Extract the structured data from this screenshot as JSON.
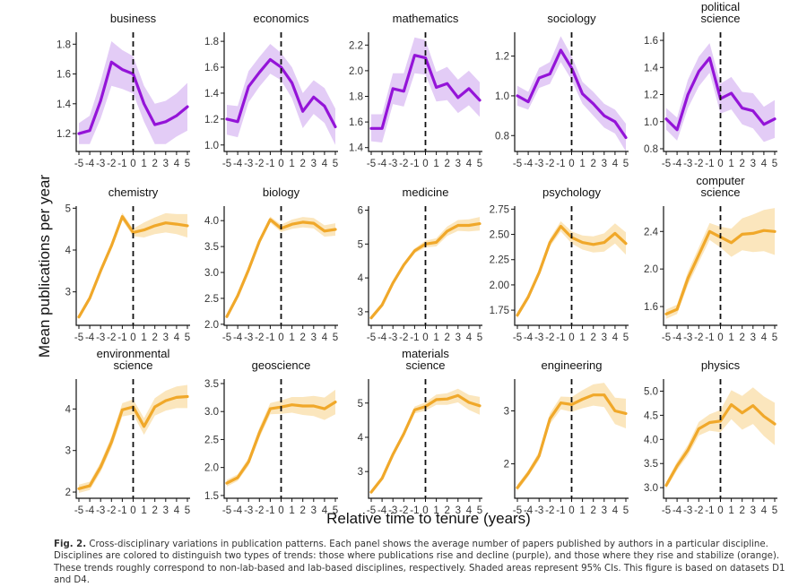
{
  "y_axis_title": "Mean publications per year",
  "x_axis_title": "Relative time to tenure (years)",
  "caption": {
    "label": "Fig. 2.",
    "text": "Cross-disciplinary variations in publication patterns. Each panel shows the average number of papers published by authors in a particular discipline. Disciplines are colored to distinguish two types of trends: those where publications rise and decline (purple), and those where they rise and stabilize (orange). These trends roughly correspond to non-lab-based and lab-based disciplines, respectively. Shaded areas represent 95% CIs. This figure is based on datasets D1 and D4."
  },
  "colors": {
    "rise_decline": "#9414d8",
    "rise_decline_band": "#e3ccf6",
    "rise_stabilize": "#f0a82a",
    "rise_stabilize_band": "#fbe6bd"
  },
  "chart_data": [
    {
      "type": "line",
      "title": [
        "business"
      ],
      "trend": "rise_decline",
      "x": [
        -5,
        -4,
        -3,
        -2,
        -1,
        0,
        1,
        2,
        3,
        4,
        5
      ],
      "xticks": [
        "-5",
        "-4",
        "-3",
        "-2",
        "-1",
        "0",
        "1",
        "2",
        "3",
        "4",
        "5"
      ],
      "ylim": [
        1.08,
        1.88
      ],
      "yticks": [
        1.2,
        1.4,
        1.6,
        1.8
      ],
      "ytick_labels": [
        "1.2",
        "1.4",
        "1.6",
        "1.8"
      ],
      "values": [
        1.2,
        1.22,
        1.42,
        1.68,
        1.63,
        1.6,
        1.4,
        1.26,
        1.28,
        1.32,
        1.38
      ],
      "ci_low": [
        1.13,
        1.13,
        1.3,
        1.52,
        1.5,
        1.47,
        1.28,
        1.13,
        1.13,
        1.18,
        1.22
      ],
      "ci_high": [
        1.27,
        1.32,
        1.55,
        1.82,
        1.76,
        1.72,
        1.52,
        1.4,
        1.42,
        1.47,
        1.54
      ]
    },
    {
      "type": "line",
      "title": [
        "economics"
      ],
      "trend": "rise_decline",
      "x": [
        -5,
        -4,
        -3,
        -2,
        -1,
        0,
        1,
        2,
        3,
        4,
        5
      ],
      "xticks": [
        "-5",
        "-4",
        "-3",
        "-2",
        "-1",
        "0",
        "1",
        "2",
        "3",
        "4",
        "5"
      ],
      "ylim": [
        0.95,
        1.87
      ],
      "yticks": [
        1.0,
        1.2,
        1.4,
        1.6,
        1.8
      ],
      "ytick_labels": [
        "1.0",
        "1.2",
        "1.4",
        "1.6",
        "1.8"
      ],
      "values": [
        1.2,
        1.18,
        1.45,
        1.56,
        1.66,
        1.6,
        1.48,
        1.26,
        1.37,
        1.3,
        1.14
      ],
      "ci_low": [
        1.08,
        1.06,
        1.33,
        1.45,
        1.55,
        1.5,
        1.36,
        1.13,
        1.24,
        1.17,
        1.0
      ],
      "ci_high": [
        1.31,
        1.3,
        1.57,
        1.68,
        1.78,
        1.71,
        1.6,
        1.4,
        1.5,
        1.44,
        1.28
      ]
    },
    {
      "type": "line",
      "title": [
        "mathematics"
      ],
      "trend": "rise_decline",
      "x": [
        -5,
        -4,
        -3,
        -2,
        -1,
        0,
        1,
        2,
        3,
        4,
        5
      ],
      "xticks": [
        "-5",
        "-4",
        "-3",
        "-2",
        "-1",
        "0",
        "1",
        "2",
        "3",
        "4",
        "5"
      ],
      "ylim": [
        1.37,
        2.3
      ],
      "yticks": [
        1.4,
        1.6,
        1.8,
        2.0,
        2.2
      ],
      "ytick_labels": [
        "1.4",
        "1.6",
        "1.8",
        "2.0",
        "2.2"
      ],
      "values": [
        1.55,
        1.55,
        1.86,
        1.84,
        2.12,
        2.1,
        1.87,
        1.9,
        1.79,
        1.86,
        1.77
      ],
      "ci_low": [
        1.45,
        1.44,
        1.74,
        1.72,
        1.98,
        1.97,
        1.76,
        1.77,
        1.67,
        1.73,
        1.64
      ],
      "ci_high": [
        1.66,
        1.66,
        1.98,
        1.98,
        2.26,
        2.24,
        1.99,
        2.03,
        1.93,
        2.0,
        1.91
      ]
    },
    {
      "type": "line",
      "title": [
        "sociology"
      ],
      "trend": "rise_decline",
      "x": [
        -5,
        -4,
        -3,
        -2,
        -1,
        0,
        1,
        2,
        3,
        4,
        5
      ],
      "xticks": [
        "-5",
        "-4",
        "-3",
        "-2",
        "-1",
        "0",
        "1",
        "2",
        "3",
        "4",
        "5"
      ],
      "ylim": [
        0.72,
        1.32
      ],
      "yticks": [
        0.8,
        1.0,
        1.2
      ],
      "ytick_labels": [
        "0.8",
        "1.0",
        "1.2"
      ],
      "values": [
        1.0,
        0.97,
        1.09,
        1.11,
        1.23,
        1.14,
        1.01,
        0.96,
        0.9,
        0.87,
        0.79
      ],
      "ci_low": [
        0.95,
        0.93,
        1.04,
        1.06,
        1.17,
        1.08,
        0.96,
        0.9,
        0.84,
        0.81,
        0.72
      ],
      "ci_high": [
        1.05,
        1.02,
        1.14,
        1.17,
        1.3,
        1.2,
        1.07,
        1.02,
        0.96,
        0.93,
        0.86
      ]
    },
    {
      "type": "line",
      "title": [
        "political",
        "science"
      ],
      "trend": "rise_decline",
      "x": [
        -5,
        -4,
        -3,
        -2,
        -1,
        0,
        1,
        2,
        3,
        4,
        5
      ],
      "xticks": [
        "-5",
        "-4",
        "-3",
        "-2",
        "-1",
        "0",
        "1",
        "2",
        "3",
        "4",
        "5"
      ],
      "ylim": [
        0.78,
        1.66
      ],
      "yticks": [
        0.8,
        1.0,
        1.2,
        1.4,
        1.6
      ],
      "ytick_labels": [
        "0.8",
        "1.0",
        "1.2",
        "1.4",
        "1.6"
      ],
      "values": [
        1.02,
        0.94,
        1.2,
        1.37,
        1.47,
        1.17,
        1.21,
        1.1,
        1.08,
        0.98,
        1.02
      ],
      "ci_low": [
        0.94,
        0.86,
        1.1,
        1.26,
        1.36,
        1.06,
        1.09,
        0.98,
        0.95,
        0.85,
        0.88
      ],
      "ci_high": [
        1.1,
        1.03,
        1.31,
        1.48,
        1.58,
        1.28,
        1.33,
        1.22,
        1.21,
        1.11,
        1.16
      ]
    },
    {
      "type": "line",
      "title": [
        "chemistry"
      ],
      "trend": "rise_stabilize",
      "x": [
        -5,
        -4,
        -3,
        -2,
        -1,
        0,
        1,
        2,
        3,
        4,
        5
      ],
      "xticks": [
        "-5",
        "-4",
        "-3",
        "-2",
        "-1",
        "0",
        "1",
        "2",
        "3",
        "4",
        "5"
      ],
      "ylim": [
        2.2,
        5.05
      ],
      "yticks": [
        3,
        4,
        5
      ],
      "ytick_labels": [
        "3",
        "4",
        "5"
      ],
      "values": [
        2.4,
        2.85,
        3.5,
        4.1,
        4.8,
        4.42,
        4.48,
        4.58,
        4.65,
        4.62,
        4.58
      ],
      "ci_low": [
        2.35,
        2.8,
        3.44,
        4.03,
        4.71,
        4.33,
        4.3,
        4.38,
        4.42,
        4.38,
        4.3
      ],
      "ci_high": [
        2.45,
        2.9,
        3.56,
        4.17,
        4.89,
        4.51,
        4.66,
        4.78,
        4.88,
        4.86,
        4.86
      ]
    },
    {
      "type": "line",
      "title": [
        "biology"
      ],
      "trend": "rise_stabilize",
      "x": [
        -5,
        -4,
        -3,
        -2,
        -1,
        0,
        1,
        2,
        3,
        4,
        5
      ],
      "xticks": [
        "-5",
        "-4",
        "-3",
        "-2",
        "-1",
        "0",
        "1",
        "2",
        "3",
        "4",
        "5"
      ],
      "ylim": [
        1.98,
        4.28
      ],
      "yticks": [
        2.0,
        2.5,
        3.0,
        3.5,
        4.0
      ],
      "ytick_labels": [
        "2.0",
        "2.5",
        "3.0",
        "3.5",
        "4.0"
      ],
      "values": [
        2.15,
        2.55,
        3.05,
        3.6,
        4.02,
        3.85,
        3.93,
        3.97,
        3.95,
        3.8,
        3.83
      ],
      "ci_low": [
        2.12,
        2.52,
        3.01,
        3.55,
        3.96,
        3.78,
        3.84,
        3.87,
        3.85,
        3.69,
        3.71
      ],
      "ci_high": [
        2.18,
        2.58,
        3.09,
        3.65,
        4.08,
        3.92,
        4.02,
        4.07,
        4.05,
        3.91,
        3.95
      ]
    },
    {
      "type": "line",
      "title": [
        "medicine"
      ],
      "trend": "rise_stabilize",
      "x": [
        -5,
        -4,
        -3,
        -2,
        -1,
        0,
        1,
        2,
        3,
        4,
        5
      ],
      "xticks": [
        "-5",
        "-4",
        "-3",
        "-2",
        "-1",
        "0",
        "1",
        "2",
        "3",
        "4",
        "5"
      ],
      "ylim": [
        2.6,
        6.12
      ],
      "yticks": [
        3,
        4,
        5,
        6
      ],
      "ytick_labels": [
        "3",
        "4",
        "5",
        "6"
      ],
      "values": [
        2.82,
        3.2,
        3.85,
        4.38,
        4.8,
        5.0,
        5.05,
        5.38,
        5.55,
        5.55,
        5.6
      ],
      "ci_low": [
        2.78,
        3.16,
        3.8,
        4.32,
        4.73,
        4.9,
        4.93,
        5.24,
        5.39,
        5.37,
        5.4
      ],
      "ci_high": [
        2.86,
        3.24,
        3.9,
        4.44,
        4.87,
        5.1,
        5.17,
        5.52,
        5.71,
        5.73,
        5.8
      ]
    },
    {
      "type": "line",
      "title": [
        "psychology"
      ],
      "trend": "rise_stabilize",
      "x": [
        -5,
        -4,
        -3,
        -2,
        -1,
        0,
        1,
        2,
        3,
        4,
        5
      ],
      "xticks": [
        "-5",
        "-4",
        "-3",
        "-2",
        "-1",
        "0",
        "1",
        "2",
        "3",
        "4",
        "5"
      ],
      "ylim": [
        1.6,
        2.78
      ],
      "yticks": [
        1.75,
        2.0,
        2.25,
        2.5,
        2.75
      ],
      "ytick_labels": [
        "1.75",
        "2.00",
        "2.25",
        "2.50",
        "2.75"
      ],
      "values": [
        1.7,
        1.88,
        2.12,
        2.42,
        2.58,
        2.47,
        2.42,
        2.4,
        2.42,
        2.51,
        2.41
      ],
      "ci_low": [
        1.67,
        1.85,
        2.09,
        2.38,
        2.53,
        2.41,
        2.35,
        2.32,
        2.33,
        2.41,
        2.3
      ],
      "ci_high": [
        1.73,
        1.91,
        2.15,
        2.46,
        2.63,
        2.53,
        2.49,
        2.48,
        2.51,
        2.61,
        2.52
      ]
    },
    {
      "type": "line",
      "title": [
        "computer",
        "science"
      ],
      "trend": "rise_stabilize",
      "x": [
        -5,
        -4,
        -3,
        -2,
        -1,
        0,
        1,
        2,
        3,
        4,
        5
      ],
      "xticks": [
        "-5",
        "-4",
        "-3",
        "-2",
        "-1",
        "0",
        "1",
        "2",
        "3",
        "4",
        "5"
      ],
      "ylim": [
        1.4,
        2.67
      ],
      "yticks": [
        1.6,
        2.0,
        2.4
      ],
      "ytick_labels": [
        "1.6",
        "2.0",
        "2.4"
      ],
      "values": [
        1.52,
        1.57,
        1.9,
        2.15,
        2.4,
        2.34,
        2.28,
        2.37,
        2.38,
        2.41,
        2.4
      ],
      "ci_low": [
        1.47,
        1.52,
        1.83,
        2.07,
        2.31,
        2.23,
        2.13,
        2.2,
        2.18,
        2.19,
        2.15
      ],
      "ci_high": [
        1.57,
        1.62,
        1.97,
        2.23,
        2.49,
        2.45,
        2.43,
        2.54,
        2.58,
        2.63,
        2.65
      ]
    },
    {
      "type": "line",
      "title": [
        "environmental",
        "science"
      ],
      "trend": "rise_stabilize",
      "x": [
        -5,
        -4,
        -3,
        -2,
        -1,
        0,
        1,
        2,
        3,
        4,
        5
      ],
      "xticks": [
        "-5",
        "-4",
        "-3",
        "-2",
        "-1",
        "0",
        "1",
        "2",
        "3",
        "4",
        "5"
      ],
      "ylim": [
        1.85,
        4.72
      ],
      "yticks": [
        2,
        3,
        4
      ],
      "ytick_labels": [
        "2",
        "3",
        "4"
      ],
      "values": [
        2.08,
        2.15,
        2.6,
        3.2,
        3.98,
        4.05,
        3.58,
        4.05,
        4.2,
        4.28,
        4.3
      ],
      "ci_low": [
        1.98,
        2.05,
        2.48,
        3.06,
        3.82,
        3.87,
        3.38,
        3.84,
        3.96,
        4.02,
        4.02
      ],
      "ci_high": [
        2.18,
        2.25,
        2.72,
        3.34,
        4.14,
        4.23,
        3.78,
        4.26,
        4.44,
        4.54,
        4.58
      ]
    },
    {
      "type": "line",
      "title": [
        "geoscience"
      ],
      "trend": "rise_stabilize",
      "x": [
        -5,
        -4,
        -3,
        -2,
        -1,
        0,
        1,
        2,
        3,
        4,
        5
      ],
      "xticks": [
        "-5",
        "-4",
        "-3",
        "-2",
        "-1",
        "0",
        "1",
        "2",
        "3",
        "4",
        "5"
      ],
      "ylim": [
        1.45,
        3.58
      ],
      "yticks": [
        1.5,
        2.0,
        2.5,
        3.0,
        3.5
      ],
      "ytick_labels": [
        "1.5",
        "2.0",
        "2.5",
        "3.0",
        "3.5"
      ],
      "values": [
        1.72,
        1.82,
        2.1,
        2.62,
        3.05,
        3.08,
        3.12,
        3.1,
        3.1,
        3.05,
        3.17
      ],
      "ci_low": [
        1.66,
        1.76,
        2.03,
        2.53,
        2.95,
        2.96,
        2.98,
        2.94,
        2.92,
        2.85,
        2.95
      ],
      "ci_high": [
        1.78,
        1.88,
        2.17,
        2.71,
        3.15,
        3.2,
        3.26,
        3.26,
        3.28,
        3.25,
        3.39
      ]
    },
    {
      "type": "line",
      "title": [
        "materials",
        "science"
      ],
      "trend": "rise_stabilize",
      "x": [
        -5,
        -4,
        -3,
        -2,
        -1,
        0,
        1,
        2,
        3,
        4,
        5
      ],
      "xticks": [
        "-5",
        "-4",
        "-3",
        "-2",
        "-1",
        "0",
        "1",
        "2",
        "3",
        "4",
        "5"
      ],
      "ylim": [
        2.22,
        5.7
      ],
      "yticks": [
        3,
        4,
        5
      ],
      "ytick_labels": [
        "3",
        "4",
        "5"
      ],
      "values": [
        2.4,
        2.8,
        3.5,
        4.1,
        4.8,
        4.9,
        5.1,
        5.12,
        5.22,
        5.02,
        4.92
      ],
      "ci_low": [
        2.35,
        2.74,
        3.43,
        4.02,
        4.7,
        4.78,
        4.95,
        4.95,
        5.02,
        4.8,
        4.66
      ],
      "ci_high": [
        2.45,
        2.86,
        3.57,
        4.18,
        4.9,
        5.02,
        5.25,
        5.29,
        5.42,
        5.24,
        5.18
      ]
    },
    {
      "type": "line",
      "title": [
        "engineering"
      ],
      "trend": "rise_stabilize",
      "x": [
        -5,
        -4,
        -3,
        -2,
        -1,
        0,
        1,
        2,
        3,
        4,
        5
      ],
      "xticks": [
        "-5",
        "-4",
        "-3",
        "-2",
        "-1",
        "0",
        "1",
        "2",
        "3",
        "4",
        "5"
      ],
      "ylim": [
        1.35,
        3.6
      ],
      "yticks": [
        2,
        3
      ],
      "ytick_labels": [
        "2",
        "3"
      ],
      "values": [
        1.55,
        1.82,
        2.15,
        2.85,
        3.15,
        3.12,
        3.22,
        3.3,
        3.3,
        3.0,
        2.95
      ],
      "ci_low": [
        1.49,
        1.76,
        2.07,
        2.75,
        3.03,
        2.98,
        3.05,
        3.1,
        3.07,
        2.75,
        2.67
      ],
      "ci_high": [
        1.61,
        1.88,
        2.23,
        2.95,
        3.27,
        3.26,
        3.39,
        3.5,
        3.53,
        3.25,
        3.23
      ]
    },
    {
      "type": "line",
      "title": [
        "physics"
      ],
      "trend": "rise_stabilize",
      "x": [
        -5,
        -4,
        -3,
        -2,
        -1,
        0,
        1,
        2,
        3,
        4,
        5
      ],
      "xticks": [
        "-5",
        "-4",
        "-3",
        "-2",
        "-1",
        "0",
        "1",
        "2",
        "3",
        "4",
        "5"
      ],
      "ylim": [
        2.78,
        5.25
      ],
      "yticks": [
        3.0,
        3.5,
        4.0,
        4.5,
        5.0
      ],
      "ytick_labels": [
        "3.0",
        "3.5",
        "4.0",
        "4.5",
        "5.0"
      ],
      "values": [
        3.05,
        3.45,
        3.78,
        4.22,
        4.35,
        4.38,
        4.72,
        4.55,
        4.7,
        4.48,
        4.32
      ],
      "ci_low": [
        2.98,
        3.36,
        3.67,
        4.08,
        4.18,
        4.15,
        4.42,
        4.2,
        4.32,
        4.07,
        3.88
      ],
      "ci_high": [
        3.12,
        3.54,
        3.89,
        4.36,
        4.52,
        4.61,
        5.02,
        4.9,
        5.08,
        4.89,
        4.76
      ]
    }
  ]
}
